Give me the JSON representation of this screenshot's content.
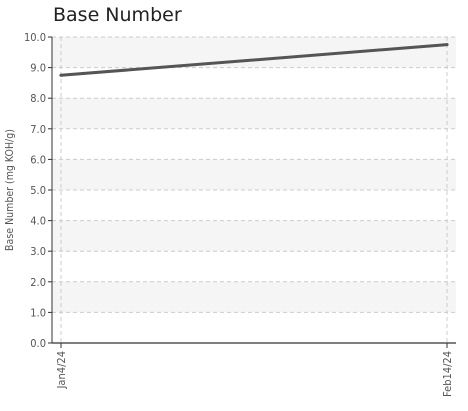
{
  "chart_data": {
    "type": "line",
    "title": "Base Number",
    "xlabel": "",
    "ylabel": "Base Number (mg KOH/g)",
    "x": [
      "Jan4/24",
      "Feb14/24"
    ],
    "series": [
      {
        "values": [
          8.75,
          9.75
        ],
        "color": "#555555"
      }
    ],
    "ylim": [
      0,
      10
    ],
    "yticks": [
      "0.0",
      "1.0",
      "2.0",
      "3.0",
      "4.0",
      "5.0",
      "6.0",
      "7.0",
      "8.0",
      "9.0",
      "10.0"
    ],
    "grid": true,
    "band_color": "#f5f5f5",
    "grid_color": "#cccccc",
    "axis_color": "#333333"
  }
}
